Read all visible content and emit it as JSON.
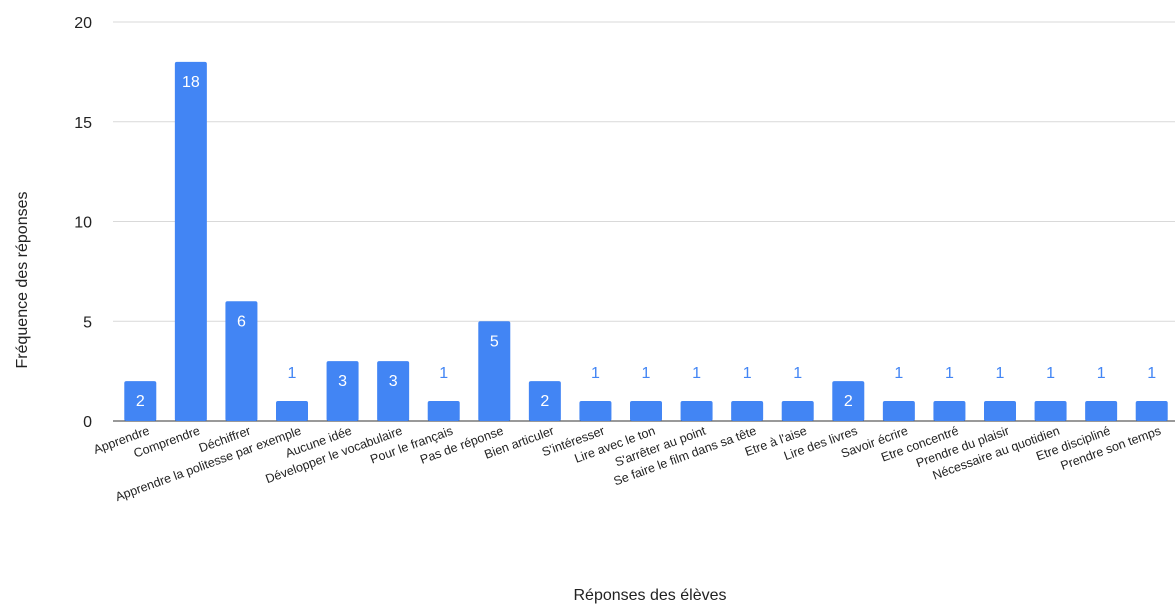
{
  "chart_data": {
    "type": "bar",
    "title": "",
    "xlabel": "Réponses des élèves",
    "ylabel": "Fréquence des réponses",
    "ylim": [
      0,
      20
    ],
    "yticks": [
      0,
      5,
      10,
      15,
      20
    ],
    "grid": true,
    "legend": "none",
    "bar_color": "#4285f4",
    "label_inside_color": "#ffffff",
    "label_outside_color": "#4285f4",
    "categories": [
      "Apprendre",
      "Comprendre",
      "Déchiffrer",
      "Apprendre la politesse par exemple",
      "Aucune idée",
      "Développer le vocabulaire",
      "Pour le français",
      "Pas de réponse",
      "Bien articuler",
      "S'intéresser",
      "Lire avec le ton",
      "S'arrêter au point",
      "Se faire le film dans sa tête",
      "Etre à l'aise",
      "Lire des livres",
      "Savoir écrire",
      "Etre concentré",
      "Prendre du plaisir",
      "Nécessaire au quotidien",
      "Etre discipliné",
      "Prendre son temps"
    ],
    "values": [
      2,
      18,
      6,
      1,
      3,
      3,
      1,
      5,
      2,
      1,
      1,
      1,
      1,
      1,
      2,
      1,
      1,
      1,
      1,
      1,
      1
    ]
  }
}
